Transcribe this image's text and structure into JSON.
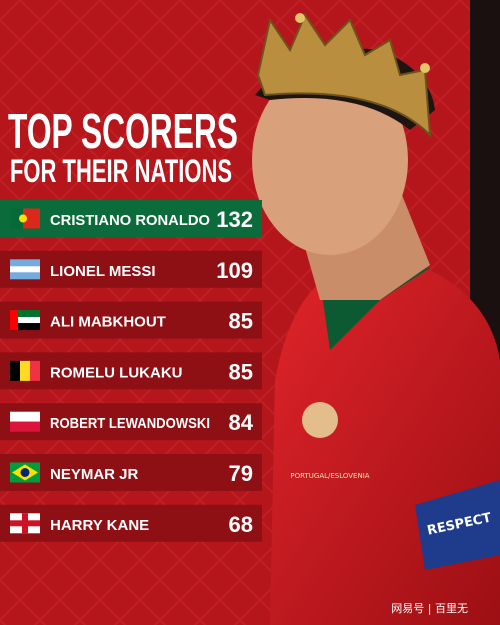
{
  "header": {
    "title": "TOP SCORERS",
    "subtitle": "FOR THEIR NATIONS"
  },
  "rows": [
    {
      "name": "CRISTIANO RONALDO",
      "goals": 132
    },
    {
      "name": "LIONEL MESSI",
      "goals": 109
    },
    {
      "name": "ALI MABKHOUT",
      "goals": 85
    },
    {
      "name": "ROMELU LUKAKU",
      "goals": 85
    },
    {
      "name": "ROBERT LEWANDOWSKI",
      "goals": 84
    },
    {
      "name": "NEYMAR JR",
      "goals": 79
    },
    {
      "name": "HARRY KANE",
      "goals": 68
    }
  ],
  "jersey": {
    "badge_text": "PORTUGAL/ESLOVENIA",
    "armband": "RESPECT"
  },
  "watermark": "网易号 | 百里无"
}
